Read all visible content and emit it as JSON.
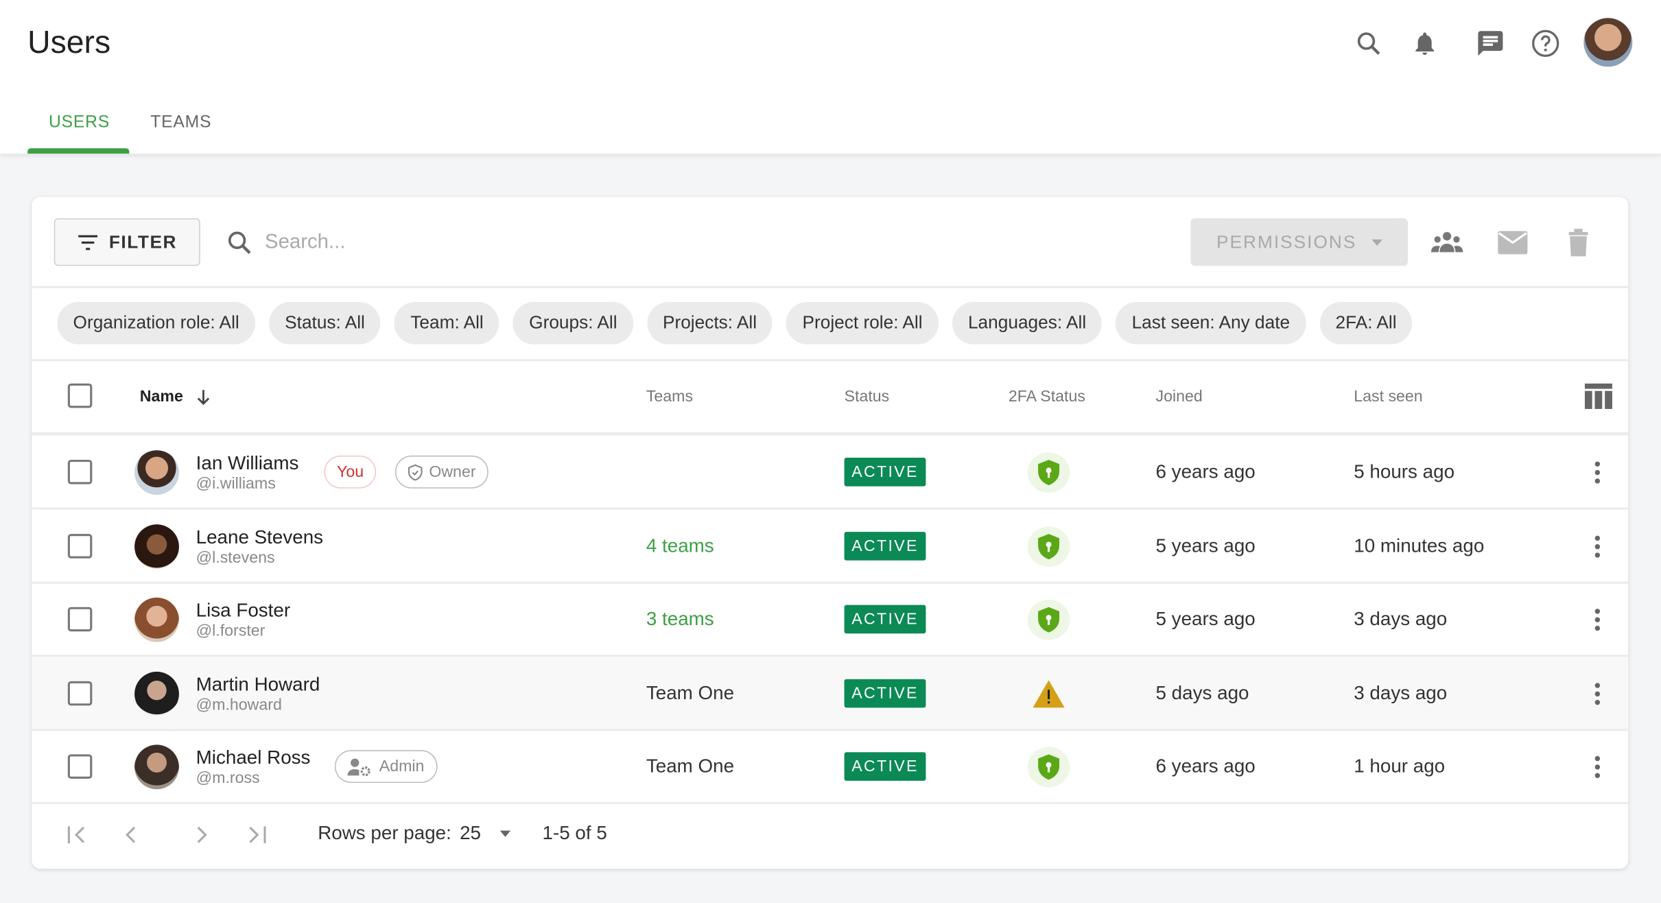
{
  "header": {
    "title": "Users",
    "icons": [
      "search-icon",
      "bell-icon",
      "chat-icon",
      "help-icon"
    ],
    "tabs": [
      {
        "label": "USERS",
        "active": true
      },
      {
        "label": "TEAMS",
        "active": false
      }
    ]
  },
  "toolbar": {
    "filter_label": "FILTER",
    "search_placeholder": "Search...",
    "permissions_label": "PERMISSIONS",
    "icons": [
      "group-icon",
      "mail-icon",
      "trash-icon"
    ]
  },
  "filters": [
    "Organization role: All",
    "Status: All",
    "Team: All",
    "Groups: All",
    "Projects: All",
    "Project role: All",
    "Languages: All",
    "Last seen: Any date",
    "2FA: All"
  ],
  "table": {
    "columns": {
      "name": "Name",
      "teams": "Teams",
      "status": "Status",
      "tfa": "2FA Status",
      "joined": "Joined",
      "last_seen": "Last seen"
    },
    "rows": [
      {
        "name": "Ian Williams",
        "handle": "@i.williams",
        "badges": {
          "you": "You",
          "role": "Owner"
        },
        "teams": "",
        "status": "ACTIVE",
        "tfa": "enabled",
        "joined": "6 years ago",
        "last_seen": "5 hours ago"
      },
      {
        "name": "Leane Stevens",
        "handle": "@l.stevens",
        "teams": "4 teams",
        "status": "ACTIVE",
        "tfa": "enabled",
        "joined": "5 years ago",
        "last_seen": "10 minutes ago"
      },
      {
        "name": "Lisa Foster",
        "handle": "@l.forster",
        "teams": "3 teams",
        "status": "ACTIVE",
        "tfa": "enabled",
        "joined": "5 years ago",
        "last_seen": "3 days ago"
      },
      {
        "name": "Martin Howard",
        "handle": "@m.howard",
        "teams": "Team One",
        "status": "ACTIVE",
        "tfa": "warning",
        "joined": "5 days ago",
        "last_seen": "3 days ago"
      },
      {
        "name": "Michael Ross",
        "handle": "@m.ross",
        "badges": {
          "role": "Admin"
        },
        "teams": "Team One",
        "status": "ACTIVE",
        "tfa": "enabled",
        "joined": "6 years ago",
        "last_seen": "1 hour ago"
      }
    ]
  },
  "pagination": {
    "rows_per_page_label": "Rows per page:",
    "rows_per_page": "25",
    "range": "1-5 of 5"
  },
  "colors": {
    "accent": "#3ba043",
    "active": "#0b8a56",
    "tfa_ok": "#5aa816",
    "tfa_warn": "#d4a017",
    "you": "#d32f2f"
  }
}
